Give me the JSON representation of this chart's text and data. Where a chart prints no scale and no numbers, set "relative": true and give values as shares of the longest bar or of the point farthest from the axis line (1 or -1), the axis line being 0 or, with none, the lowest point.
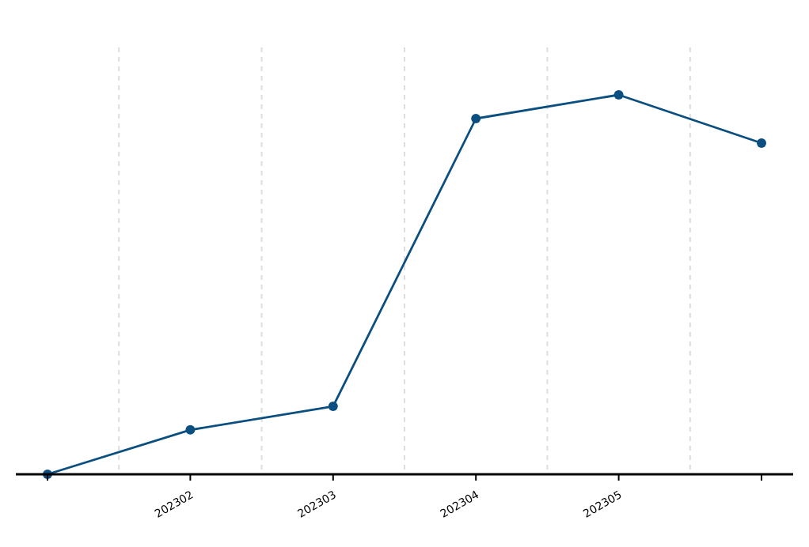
{
  "chart_data": {
    "type": "line",
    "relative": true,
    "categories": [
      null,
      "202302",
      "202303",
      "202304",
      "202305",
      null
    ],
    "series": [
      {
        "color": "#0b4f80",
        "values": [
          0,
          0.117,
          0.179,
          0.9375,
          1,
          0.873
        ]
      }
    ],
    "marker": "circle",
    "grid": "x"
  }
}
